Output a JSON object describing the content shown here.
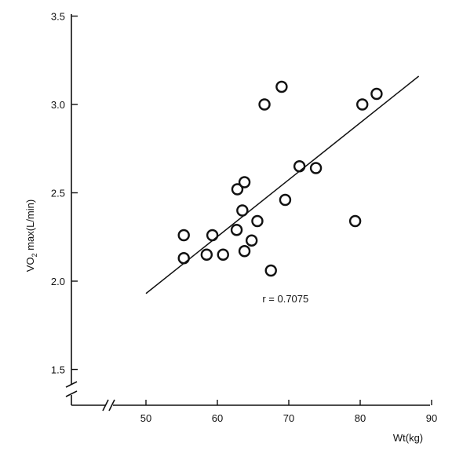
{
  "chart_data": {
    "type": "scatter",
    "title": "",
    "xlabel": "Wt(kg)",
    "ylabel_main": "VO",
    "ylabel_sub": "2",
    "ylabel_rest": " max(L/min)",
    "xlim": [
      40,
      90
    ],
    "ylim": [
      1.4,
      3.5
    ],
    "x_ticks": [
      50,
      60,
      70,
      80,
      90
    ],
    "x_tick_labels": [
      "50",
      "60",
      "70",
      "80",
      "90"
    ],
    "y_ticks": [
      1.5,
      2.0,
      2.5,
      3.0,
      3.5
    ],
    "y_tick_labels": [
      "1.5",
      "2.0",
      "2.5",
      "3.0",
      "3.5"
    ],
    "axis_breaks": [
      "x",
      "y"
    ],
    "grid": false,
    "series": [
      {
        "marker": "open-circle",
        "points": [
          {
            "x": 55.3,
            "y": 2.26
          },
          {
            "x": 55.3,
            "y": 2.13
          },
          {
            "x": 58.5,
            "y": 2.15
          },
          {
            "x": 59.3,
            "y": 2.26
          },
          {
            "x": 60.8,
            "y": 2.15
          },
          {
            "x": 62.7,
            "y": 2.29
          },
          {
            "x": 62.8,
            "y": 2.52
          },
          {
            "x": 63.5,
            "y": 2.4
          },
          {
            "x": 63.8,
            "y": 2.56
          },
          {
            "x": 63.8,
            "y": 2.17
          },
          {
            "x": 64.8,
            "y": 2.23
          },
          {
            "x": 65.6,
            "y": 2.34
          },
          {
            "x": 66.6,
            "y": 3.0
          },
          {
            "x": 67.5,
            "y": 2.06
          },
          {
            "x": 69.0,
            "y": 3.1
          },
          {
            "x": 69.5,
            "y": 2.46
          },
          {
            "x": 71.5,
            "y": 2.65
          },
          {
            "x": 73.8,
            "y": 2.64
          },
          {
            "x": 79.3,
            "y": 2.34
          },
          {
            "x": 80.3,
            "y": 3.0
          },
          {
            "x": 82.3,
            "y": 3.06
          }
        ]
      }
    ],
    "fit_line": {
      "x": [
        50,
        88.2
      ],
      "y": [
        1.93,
        3.16
      ]
    },
    "annotation": "r = 0.7075",
    "annotation_at": {
      "x": 66.3,
      "y": 1.88
    }
  }
}
